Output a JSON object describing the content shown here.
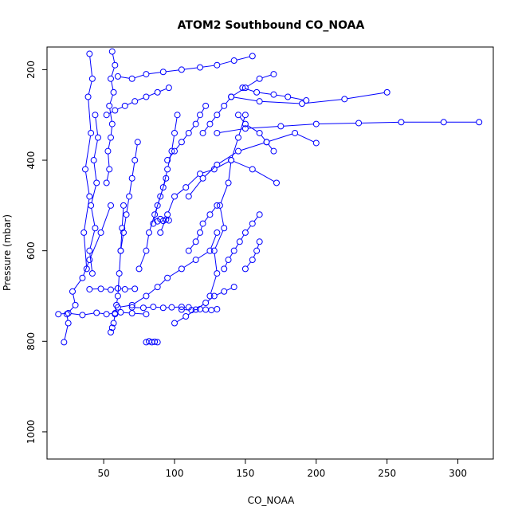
{
  "chart_data": {
    "type": "line",
    "title": "ATOM2 Southbound CO_NOAA",
    "xlabel": "CO_NOAA",
    "ylabel": "Pressure (mbar)",
    "xlim": [
      10,
      325
    ],
    "ylim": [
      1060,
      150
    ],
    "y_reversed": true,
    "x_ticks": [
      50,
      100,
      150,
      200,
      250,
      300
    ],
    "y_ticks": [
      200,
      400,
      600,
      800,
      1000
    ],
    "grid": false,
    "legend": "none",
    "markers": "open-circle",
    "color": "#0000ff",
    "series": [
      {
        "x": [
          22,
          25,
          24,
          30,
          28,
          35,
          40,
          48,
          55
        ],
        "y": [
          802,
          760,
          740,
          720,
          690,
          660,
          620,
          560,
          500
        ]
      },
      {
        "x": [
          18,
          25,
          35,
          45,
          52,
          58,
          62,
          70,
          80
        ],
        "y": [
          740,
          738,
          742,
          737,
          740,
          738,
          736,
          738,
          740
        ]
      },
      {
        "x": [
          40,
          48,
          55,
          60,
          65,
          72
        ],
        "y": [
          685,
          684,
          686,
          683,
          685,
          684
        ]
      },
      {
        "x": [
          55,
          56,
          57,
          58,
          59,
          60,
          61,
          62,
          63,
          64
        ],
        "y": [
          780,
          770,
          760,
          740,
          720,
          700,
          650,
          600,
          550,
          500
        ]
      },
      {
        "x": [
          52,
          54,
          53,
          55,
          56,
          54,
          57,
          55,
          58,
          56
        ],
        "y": [
          450,
          420,
          380,
          350,
          320,
          280,
          250,
          220,
          190,
          160
        ]
      },
      {
        "x": [
          42,
          40,
          44,
          41,
          45,
          43,
          46,
          44
        ],
        "y": [
          650,
          600,
          550,
          500,
          450,
          400,
          350,
          300
        ]
      },
      {
        "x": [
          38,
          36,
          40,
          37,
          41,
          39,
          42,
          40
        ],
        "y": [
          640,
          560,
          480,
          420,
          340,
          260,
          220,
          165
        ]
      },
      {
        "x": [
          60,
          70,
          80,
          88,
          95,
          105,
          115,
          125,
          130
        ],
        "y": [
          725,
          720,
          700,
          680,
          660,
          640,
          620,
          600,
          560
        ]
      },
      {
        "x": [
          70,
          78,
          85,
          92,
          98,
          105,
          110
        ],
        "y": [
          725,
          726,
          724,
          726,
          725,
          724,
          725
        ]
      },
      {
        "x": [
          105,
          112,
          118,
          122,
          126,
          130
        ],
        "y": [
          730,
          731,
          729,
          730,
          731,
          729
        ]
      },
      {
        "x": [
          125,
          130,
          128,
          135,
          132,
          138,
          140,
          145,
          150
        ],
        "y": [
          700,
          650,
          600,
          550,
          500,
          450,
          400,
          350,
          300
        ]
      },
      {
        "x": [
          90,
          95,
          100,
          108,
          118,
          128,
          140,
          155,
          172
        ],
        "y": [
          560,
          520,
          480,
          460,
          430,
          420,
          400,
          420,
          450
        ]
      },
      {
        "x": [
          110,
          120,
          130,
          145,
          165,
          185,
          200
        ],
        "y": [
          480,
          440,
          410,
          380,
          360,
          340,
          362
        ]
      },
      {
        "x": [
          130,
          150,
          175,
          200,
          230,
          260,
          290,
          315
        ],
        "y": [
          340,
          330,
          325,
          320,
          318,
          316,
          316,
          316
        ]
      },
      {
        "x": [
          140,
          160,
          190,
          220,
          250
        ],
        "y": [
          260,
          270,
          275,
          265,
          250
        ]
      },
      {
        "x": [
          148,
          158,
          170,
          180,
          193
        ],
        "y": [
          240,
          250,
          255,
          260,
          268
        ]
      },
      {
        "x": [
          120,
          125,
          130,
          135,
          140,
          150,
          160,
          170
        ],
        "y": [
          340,
          320,
          300,
          280,
          260,
          240,
          220,
          210
        ]
      },
      {
        "x": [
          95,
          100,
          105,
          110,
          115,
          118,
          122
        ],
        "y": [
          400,
          380,
          360,
          340,
          320,
          300,
          280
        ]
      },
      {
        "x": [
          85,
          88,
          92,
          95,
          98,
          100,
          102
        ],
        "y": [
          540,
          500,
          460,
          420,
          380,
          340,
          300
        ]
      },
      {
        "x": [
          75,
          80,
          82,
          86,
          90,
          94
        ],
        "y": [
          640,
          600,
          560,
          520,
          480,
          440
        ]
      },
      {
        "x": [
          62,
          64,
          66,
          68,
          70,
          72,
          74
        ],
        "y": [
          600,
          560,
          520,
          480,
          440,
          400,
          360
        ]
      },
      {
        "x": [
          135,
          138,
          142,
          146,
          150,
          155,
          160
        ],
        "y": [
          640,
          620,
          600,
          580,
          560,
          540,
          520
        ]
      },
      {
        "x": [
          100,
          108,
          115,
          122,
          128,
          135,
          142
        ],
        "y": [
          760,
          745,
          730,
          715,
          700,
          690,
          680
        ]
      },
      {
        "x": [
          80,
          82,
          84,
          86,
          88
        ],
        "y": [
          802,
          800,
          802,
          801,
          802
        ]
      },
      {
        "x": [
          150,
          155,
          158,
          160
        ],
        "y": [
          640,
          620,
          600,
          580
        ]
      },
      {
        "x": [
          60,
          70,
          80,
          92,
          105,
          118,
          130,
          142,
          155
        ],
        "y": [
          215,
          220,
          210,
          205,
          200,
          195,
          190,
          180,
          170
        ]
      },
      {
        "x": [
          52,
          58,
          65,
          72,
          80,
          88,
          96
        ],
        "y": [
          300,
          290,
          280,
          270,
          260,
          250,
          240
        ]
      },
      {
        "x": [
          110,
          115,
          118,
          120,
          125,
          130
        ],
        "y": [
          600,
          580,
          560,
          540,
          520,
          500
        ]
      },
      {
        "x": [
          145,
          150,
          160,
          165,
          170
        ],
        "y": [
          300,
          320,
          340,
          360,
          380
        ]
      },
      {
        "x": [
          88,
          90,
          92,
          94,
          96
        ],
        "y": [
          535,
          530,
          534,
          531,
          533
        ]
      }
    ]
  }
}
